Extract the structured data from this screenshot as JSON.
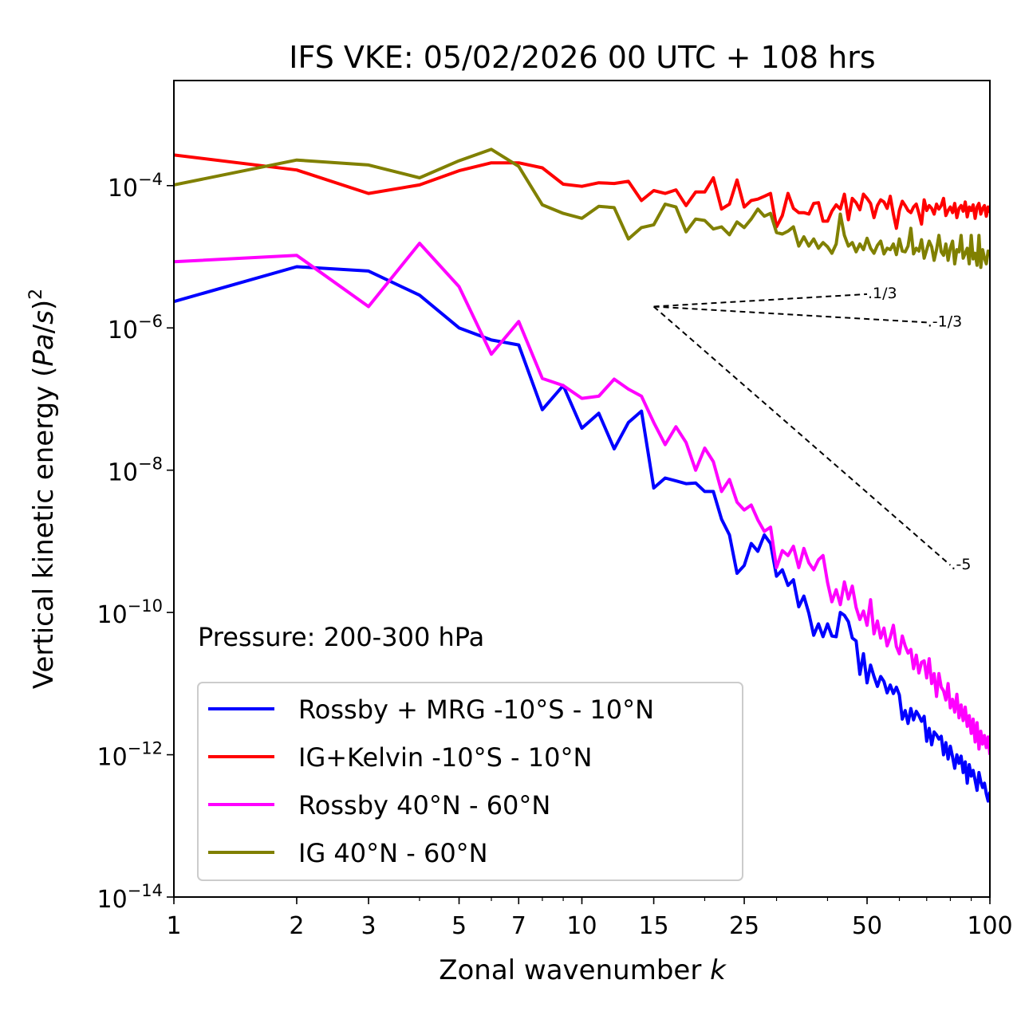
{
  "chart_data": {
    "type": "line",
    "title": "IFS VKE: 05/02/2026 00 UTC + 108 hrs",
    "xlabel": "Zonal wavenumber k",
    "ylabel": "Vertical kinetic energy (Pa/s)^2",
    "xscale": "log",
    "yscale": "log",
    "xlim": [
      1,
      100
    ],
    "ylim": [
      1e-14,
      0.003
    ],
    "grid": false,
    "x_ticks": [
      1,
      2,
      3,
      5,
      7,
      10,
      15,
      25,
      50,
      100
    ],
    "x_tick_labels": [
      "1",
      "2",
      "3",
      "5",
      "7",
      "10",
      "15",
      "25",
      "50",
      "100"
    ],
    "y_ticks": [
      -4,
      -6,
      -8,
      -10,
      -12,
      -14
    ],
    "y_tick_bases": [
      "10",
      "10",
      "10",
      "10",
      "10",
      "10"
    ],
    "y_tick_exponents": [
      "−4",
      "−6",
      "−8",
      "−10",
      "−12",
      "−14"
    ],
    "annotation": "Pressure: 200-300 hPa",
    "legend_placement": "lower-left",
    "series": [
      {
        "name": "Rossby + MRG -10°S - 10°N",
        "color": "#0000ff",
        "log10_values": [
          -5.63,
          -5.14,
          -5.2,
          -5.54,
          -6.0,
          -6.17,
          -6.24,
          -7.15,
          -6.81,
          -7.41,
          -7.2,
          -7.7,
          -7.33,
          -7.17,
          -8.25,
          -8.11,
          -8.15,
          -8.19,
          -8.18,
          -8.3,
          -8.3,
          -8.69,
          -8.91,
          -9.45,
          -9.34,
          -9.03,
          -9.14,
          -8.91,
          -9.03,
          -9.49,
          -9.4,
          -9.62,
          -9.54,
          -9.92,
          -9.77,
          -10.01,
          -10.32,
          -10.16,
          -10.34,
          -10.16,
          -10.33,
          -10.34,
          -10.0,
          -10.04,
          -10.13,
          -10.36,
          -10.4,
          -10.87,
          -10.58,
          -10.99,
          -10.74,
          -10.9,
          -11.04,
          -10.9,
          -10.97,
          -11.13,
          -11.02,
          -11.14,
          -11.05,
          -11.16,
          -11.5,
          -11.38,
          -11.56,
          -11.35,
          -11.51,
          -11.39,
          -11.45,
          -11.53,
          -11.46,
          -11.81,
          -11.63,
          -11.86,
          -11.68,
          -11.72,
          -11.78,
          -11.74,
          -12.0,
          -11.83,
          -12.06,
          -11.88,
          -12.03,
          -12.19,
          -12.0,
          -12.12,
          -12.02,
          -12.25,
          -12.1,
          -12.4,
          -12.14,
          -12.3,
          -12.22,
          -12.36,
          -12.5,
          -12.25,
          -12.38,
          -12.46,
          -12.4,
          -12.55,
          -12.65,
          -12.52
        ]
      },
      {
        "name": "IG+Kelvin -10°S - 10°N",
        "color": "#ff0000",
        "log10_values": [
          -3.57,
          -3.78,
          -4.11,
          -3.99,
          -3.79,
          -3.68,
          -3.68,
          -3.75,
          -3.98,
          -4.01,
          -3.96,
          -3.97,
          -3.94,
          -4.21,
          -4.07,
          -4.11,
          -4.06,
          -4.28,
          -4.09,
          -4.09,
          -3.89,
          -4.33,
          -4.26,
          -3.92,
          -4.3,
          -4.21,
          -4.19,
          -4.15,
          -4.11,
          -4.58,
          -4.42,
          -4.11,
          -4.32,
          -4.38,
          -4.38,
          -4.4,
          -4.25,
          -4.24,
          -4.5,
          -4.5,
          -4.36,
          -4.27,
          -4.33,
          -4.12,
          -4.48,
          -4.18,
          -4.24,
          -4.34,
          -4.12,
          -4.18,
          -4.25,
          -4.45,
          -4.28,
          -4.2,
          -4.23,
          -4.32,
          -4.15,
          -4.4,
          -4.6,
          -4.35,
          -4.22,
          -4.28,
          -4.35,
          -4.38,
          -4.3,
          -4.26,
          -4.39,
          -4.54,
          -4.2,
          -4.35,
          -4.28,
          -4.32,
          -4.4,
          -4.26,
          -4.33,
          -4.28,
          -4.18,
          -4.42,
          -4.35,
          -4.3,
          -4.38,
          -4.25,
          -4.45,
          -4.32,
          -4.28,
          -4.36,
          -4.23,
          -4.44,
          -4.3,
          -4.35,
          -4.27,
          -4.46,
          -4.3,
          -4.25,
          -4.4,
          -4.32,
          -4.28,
          -4.43,
          -4.3,
          -4.38
        ]
      },
      {
        "name": "Rossby 40°N - 60°N",
        "color": "#ff00ff",
        "log10_values": [
          -5.07,
          -4.98,
          -5.7,
          -4.81,
          -5.42,
          -6.37,
          -5.91,
          -6.71,
          -6.81,
          -6.99,
          -6.96,
          -6.72,
          -6.86,
          -6.96,
          -7.33,
          -7.64,
          -7.39,
          -7.61,
          -8.0,
          -7.69,
          -7.88,
          -8.3,
          -8.13,
          -8.45,
          -8.56,
          -8.49,
          -8.7,
          -8.86,
          -8.8,
          -9.37,
          -9.13,
          -9.2,
          -9.07,
          -9.37,
          -9.1,
          -9.3,
          -9.4,
          -9.26,
          -9.2,
          -9.58,
          -9.85,
          -9.68,
          -9.89,
          -9.57,
          -9.81,
          -9.63,
          -9.93,
          -10.1,
          -9.98,
          -10.18,
          -9.82,
          -10.3,
          -10.12,
          -10.36,
          -10.22,
          -10.47,
          -10.35,
          -10.18,
          -10.48,
          -10.58,
          -10.33,
          -10.47,
          -10.57,
          -10.52,
          -10.79,
          -10.6,
          -10.85,
          -10.7,
          -10.68,
          -10.92,
          -10.65,
          -11.0,
          -10.86,
          -11.18,
          -10.86,
          -11.05,
          -11.1,
          -11.23,
          -11.0,
          -11.34,
          -11.22,
          -11.4,
          -11.15,
          -11.48,
          -11.3,
          -11.52,
          -11.33,
          -11.6,
          -11.45,
          -11.7,
          -11.5,
          -11.82,
          -11.55,
          -11.92,
          -11.67,
          -11.85,
          -11.73,
          -11.9,
          -11.75,
          -12.0
        ]
      },
      {
        "name": "IG 40°N - 60°N",
        "color": "#808000",
        "log10_values": [
          -3.99,
          -3.64,
          -3.71,
          -3.89,
          -3.65,
          -3.49,
          -3.73,
          -4.27,
          -4.39,
          -4.46,
          -4.29,
          -4.31,
          -4.75,
          -4.59,
          -4.55,
          -4.26,
          -4.3,
          -4.65,
          -4.47,
          -4.49,
          -4.61,
          -4.58,
          -4.69,
          -4.51,
          -4.59,
          -4.47,
          -4.33,
          -4.43,
          -4.39,
          -4.66,
          -4.68,
          -4.64,
          -4.58,
          -4.85,
          -4.72,
          -4.85,
          -4.75,
          -4.88,
          -4.8,
          -4.86,
          -4.95,
          -4.82,
          -4.4,
          -4.7,
          -4.85,
          -4.8,
          -4.93,
          -4.82,
          -4.9,
          -4.74,
          -4.88,
          -4.95,
          -4.84,
          -4.78,
          -4.96,
          -4.88,
          -4.9,
          -4.82,
          -4.97,
          -4.75,
          -4.92,
          -4.93,
          -4.85,
          -4.6,
          -4.96,
          -4.88,
          -4.92,
          -4.76,
          -5.02,
          -4.9,
          -4.78,
          -4.86,
          -5.05,
          -4.9,
          -4.7,
          -4.93,
          -4.98,
          -4.82,
          -5.05,
          -4.88,
          -4.78,
          -5.1,
          -4.9,
          -4.93,
          -4.7,
          -5.02,
          -4.95,
          -4.88,
          -5.1,
          -4.7,
          -5.03,
          -4.95,
          -5.12,
          -4.7,
          -5.15,
          -4.9,
          -5.02,
          -5.1,
          -4.92,
          -4.95
        ]
      }
    ],
    "reference_slopes": [
      {
        "label": "1/3",
        "slope": 0.3333,
        "k_start": 15,
        "k_end": 50,
        "log10_start": -5.7
      },
      {
        "label": "-1/3",
        "slope": -0.3333,
        "k_start": 15,
        "k_end": 70,
        "log10_start": -5.7
      },
      {
        "label": "-5",
        "slope": -5,
        "k_start": 15,
        "k_end": 80,
        "log10_start": -5.7
      }
    ]
  }
}
